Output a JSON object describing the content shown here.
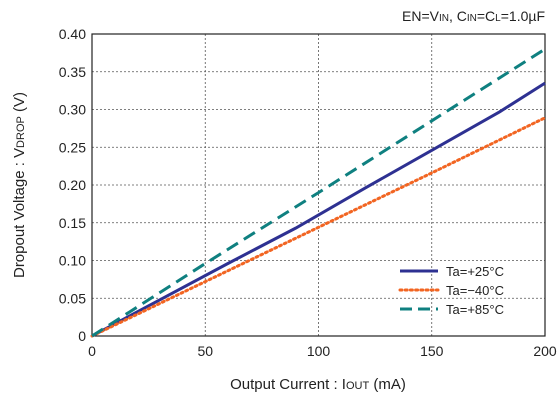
{
  "chart_data": {
    "type": "line",
    "annotation": {
      "parts": [
        {
          "text": "EN=V"
        },
        {
          "text": "IN",
          "small": true
        },
        {
          "text": ", C"
        },
        {
          "text": "IN",
          "small": true
        },
        {
          "text": "=C"
        },
        {
          "text": "L",
          "small": true
        },
        {
          "text": "=1.0µF"
        }
      ]
    },
    "xlabel": {
      "parts": [
        {
          "text": "Output Current : I"
        },
        {
          "text": "OUT",
          "small": true
        },
        {
          "text": " (mA)"
        }
      ]
    },
    "ylabel": {
      "parts": [
        {
          "text": "Dropout Voltage : V"
        },
        {
          "text": "DROP",
          "small": true
        },
        {
          "text": " (V)"
        }
      ]
    },
    "xlim": [
      0,
      200
    ],
    "ylim": [
      0,
      0.4
    ],
    "xticks": [
      {
        "value": 0,
        "label": "0"
      },
      {
        "value": 50,
        "label": "50"
      },
      {
        "value": 100,
        "label": "100"
      },
      {
        "value": 150,
        "label": "150"
      },
      {
        "value": 200,
        "label": "200"
      }
    ],
    "yticks": [
      {
        "value": 0,
        "label": "0"
      },
      {
        "value": 0.05,
        "label": "0.05"
      },
      {
        "value": 0.1,
        "label": "0.10"
      },
      {
        "value": 0.15,
        "label": "0.15"
      },
      {
        "value": 0.2,
        "label": "0.20"
      },
      {
        "value": 0.25,
        "label": "0.25"
      },
      {
        "value": 0.3,
        "label": "0.30"
      },
      {
        "value": 0.35,
        "label": "0.35"
      },
      {
        "value": 0.4,
        "label": "0.40"
      }
    ],
    "grid": true,
    "legend_position": "bottom-right",
    "series": [
      {
        "name": "Ta=+25°C",
        "color": "#2e3192",
        "style": "solid",
        "x": [
          0,
          10,
          30,
          60,
          90,
          120,
          150,
          180,
          200
        ],
        "y": [
          0,
          0.016,
          0.048,
          0.096,
          0.143,
          0.195,
          0.246,
          0.297,
          0.335
        ]
      },
      {
        "name": "Ta=−40°C",
        "color": "#f26522",
        "style": "dotted",
        "x": [
          0,
          50,
          100,
          150,
          200
        ],
        "y": [
          0,
          0.072,
          0.144,
          0.216,
          0.289
        ]
      },
      {
        "name": "Ta=+85°C",
        "color": "#0f8080",
        "style": "dashed",
        "x": [
          0,
          50,
          100,
          150,
          200
        ],
        "y": [
          0,
          0.096,
          0.19,
          0.285,
          0.38
        ]
      }
    ]
  }
}
